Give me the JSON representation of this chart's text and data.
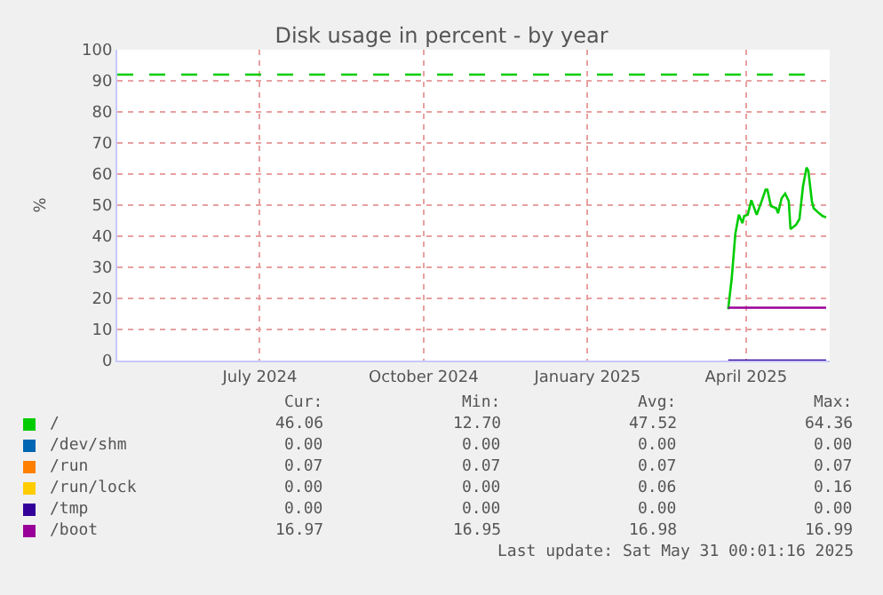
{
  "chart_data": {
    "type": "line",
    "title": "Disk usage in percent - by year",
    "ylabel": "%",
    "xlim": [
      "2024-04-27",
      "2025-06-01"
    ],
    "xticks": [
      {
        "value": "2024-07-16",
        "label": "July 2024"
      },
      {
        "value": "2024-10-16",
        "label": "October 2024"
      },
      {
        "value": "2025-01-16",
        "label": "January 2025"
      },
      {
        "value": "2025-04-15",
        "label": "April 2025"
      }
    ],
    "ylim": [
      0,
      100
    ],
    "yticks": [
      0,
      10,
      20,
      30,
      40,
      50,
      60,
      70,
      80,
      90,
      100
    ],
    "grid": true,
    "legend": "bottom",
    "line_style": "solid",
    "marker": "none",
    "series": [
      {
        "name": "/",
        "color": "#00cc00",
        "x": [
          "2025-04-05",
          "2025-04-07",
          "2025-04-09",
          "2025-04-11",
          "2025-04-13",
          "2025-04-14",
          "2025-04-16",
          "2025-04-18",
          "2025-04-21",
          "2025-04-24",
          "2025-04-26",
          "2025-04-27",
          "2025-04-29",
          "2025-05-02",
          "2025-05-03",
          "2025-05-05",
          "2025-05-07",
          "2025-05-09",
          "2025-05-10",
          "2025-05-13",
          "2025-05-15",
          "2025-05-17",
          "2025-05-19",
          "2025-05-20",
          "2025-05-22",
          "2025-05-23",
          "2025-05-26",
          "2025-05-28",
          "2025-05-30"
        ],
        "values": [
          16.5,
          26.5,
          40.7,
          46.9,
          44.2,
          46.5,
          46.9,
          51.6,
          46.9,
          51.6,
          55.0,
          55.0,
          49.7,
          49.0,
          47.4,
          52.2,
          53.7,
          51.3,
          42.3,
          43.6,
          45.5,
          56.0,
          62.1,
          61.1,
          51.3,
          49.0,
          47.4,
          46.5,
          46.1
        ]
      },
      {
        "name": "/dev/shm",
        "color": "#0066b3"
      },
      {
        "name": "/run",
        "color": "#ff8000"
      },
      {
        "name": "/run/lock",
        "color": "#ffcc00"
      },
      {
        "name": "/tmp",
        "color": "#330099",
        "x": [
          "2025-04-05",
          "2025-05-30"
        ],
        "values": [
          0,
          0
        ]
      },
      {
        "name": "/boot",
        "color": "#990099",
        "x": [
          "2025-04-05",
          "2025-05-30"
        ],
        "values": [
          17,
          17
        ]
      }
    ],
    "ref_lines": [
      {
        "axis": "y",
        "value": 92,
        "color": "#00cc00",
        "line_style": "dashed"
      }
    ],
    "annotations": [
      "Cur:",
      "Min:",
      "Avg:",
      "Max:",
      "46.06",
      "12.70",
      "47.52",
      "64.36",
      "0.00",
      "0.00",
      "0.00",
      "0.00",
      "0.07",
      "0.07",
      "0.07",
      "0.07",
      "0.00",
      "0.00",
      "0.06",
      "0.16",
      "0.00",
      "0.00",
      "0.00",
      "0.00",
      "16.97",
      "16.95",
      "16.98",
      "16.99",
      "Last update: Sat May 31 00:01:16 2025"
    ]
  }
}
